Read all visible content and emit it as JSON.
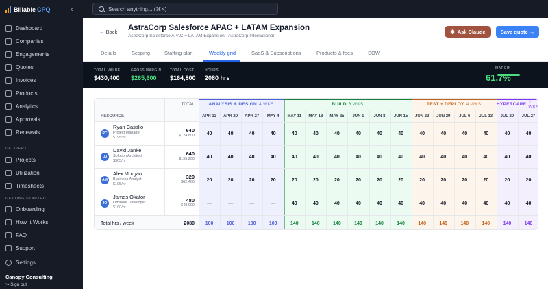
{
  "app": {
    "brand_name": "Billable",
    "brand_suffix": "CPQ"
  },
  "sidebar": {
    "main": [
      {
        "label": "Dashboard",
        "icon": "dashboard-icon"
      },
      {
        "label": "Companies",
        "icon": "building-icon"
      },
      {
        "label": "Engagements",
        "icon": "handshake-icon"
      },
      {
        "label": "Quotes",
        "icon": "document-icon"
      },
      {
        "label": "Invoices",
        "icon": "receipt-icon"
      },
      {
        "label": "Products",
        "icon": "box-icon"
      },
      {
        "label": "Analytics",
        "icon": "chart-icon"
      },
      {
        "label": "Approvals",
        "icon": "check-icon"
      },
      {
        "label": "Renewals",
        "icon": "refresh-icon"
      }
    ],
    "delivery_title": "DELIVERY",
    "delivery": [
      {
        "label": "Projects",
        "icon": "folder-icon"
      },
      {
        "label": "Utilization",
        "icon": "gauge-icon"
      },
      {
        "label": "Timesheets",
        "icon": "clock-icon"
      }
    ],
    "getting_started_title": "GETTING STARTED",
    "getting_started": [
      {
        "label": "Onboarding",
        "icon": "rocket-icon"
      },
      {
        "label": "How It Works",
        "icon": "book-icon"
      },
      {
        "label": "FAQ",
        "icon": "question-icon"
      },
      {
        "label": "Support",
        "icon": "help-icon"
      }
    ],
    "settings_label": "Settings",
    "org_name": "Canopy Consulting",
    "signout_label": "Sign out"
  },
  "search": {
    "placeholder": "Search anything... (⌘K)"
  },
  "header": {
    "back_label": "Back",
    "title": "AstraCorp Salesforce APAC + LATAM Expansion",
    "subtitle": "AstraCorp Salesforce APAC + LATAM Expansion · AstraCorp International",
    "ask_claude_label": "Ask Claude",
    "save_quote_label": "Save quote →"
  },
  "tabs": [
    "Details",
    "Scoping",
    "Staffing plan",
    "Weekly grid",
    "SaaS & Subscriptions",
    "Products & fees",
    "SOW"
  ],
  "active_tab": "Weekly grid",
  "summary": {
    "total_value_label": "TOTAL VALUE",
    "total_value": "$430,400",
    "gross_margin_label": "GROSS MARGIN",
    "gross_margin": "$265,600",
    "total_cost_label": "TOTAL COST",
    "total_cost": "$164,800",
    "hours_label": "HOURS",
    "hours": "2080 hrs",
    "margin_label": "MARGIN",
    "margin": "61.7%"
  },
  "grid": {
    "total_header": "TOTAL",
    "resource_header": "RESOURCE",
    "phases": [
      {
        "name": "ANALYSIS & DESIGN",
        "wks": "4 WKS",
        "color": "#4f5fd6",
        "bg": "#eef0fd",
        "weeks": [
          "APR 13",
          "APR 20",
          "APR 27",
          "MAY 4"
        ]
      },
      {
        "name": "BUILD",
        "wks": "6 WKS",
        "color": "#17803d",
        "bg": "#ecfbf1",
        "weeks": [
          "MAY 11",
          "MAY 18",
          "MAY 25",
          "JUN 1",
          "JUN 8",
          "JUN 15"
        ]
      },
      {
        "name": "TEST + DEPLOY",
        "wks": "4 WKS",
        "color": "#c2611c",
        "bg": "#fdf5ec",
        "weeks": [
          "JUN 22",
          "JUN 29",
          "JUL 6",
          "JUL 13"
        ]
      },
      {
        "name": "HYPERCARE",
        "wks": "2 WKS",
        "color": "#7c3aed",
        "bg": "#f4effd",
        "weeks": [
          "JUL 20",
          "JUL 27"
        ]
      }
    ],
    "resources": [
      {
        "initials": "RC",
        "name": "Ryan Castillo",
        "role": "Project Manager",
        "rate": "$195/hr",
        "total_hrs": "640",
        "total_cost": "$124,800",
        "hours": [
          "40",
          "40",
          "40",
          "40",
          "40",
          "40",
          "40",
          "40",
          "40",
          "40",
          "40",
          "40",
          "40",
          "40",
          "40",
          "40"
        ]
      },
      {
        "initials": "DJ",
        "name": "David Janke",
        "role": "Solution Architect",
        "rate": "$305/hr",
        "total_hrs": "640",
        "total_cost": "$195,200",
        "hours": [
          "40",
          "40",
          "40",
          "40",
          "40",
          "40",
          "40",
          "40",
          "40",
          "40",
          "40",
          "40",
          "40",
          "40",
          "40",
          "40"
        ]
      },
      {
        "initials": "AM",
        "name": "Alex Morgan",
        "role": "Business Analyst",
        "rate": "$195/hr",
        "total_hrs": "320",
        "total_cost": "$62,400",
        "hours": [
          "20",
          "20",
          "20",
          "20",
          "20",
          "20",
          "20",
          "20",
          "20",
          "20",
          "20",
          "20",
          "20",
          "20",
          "20",
          "20"
        ]
      },
      {
        "initials": "JO",
        "name": "James Okafor",
        "role": "Offshore Developer",
        "rate": "$100/hr",
        "total_hrs": "480",
        "total_cost": "$48,000",
        "hours": [
          "—",
          "—",
          "—",
          "—",
          "40",
          "40",
          "40",
          "40",
          "40",
          "40",
          "40",
          "40",
          "40",
          "40",
          "40",
          "40"
        ]
      }
    ],
    "footer_label": "Total hrs / week",
    "footer_total": "2080",
    "footer_weeks": [
      "100",
      "100",
      "100",
      "100",
      "140",
      "140",
      "140",
      "140",
      "140",
      "140",
      "140",
      "140",
      "140",
      "140",
      "140",
      "140"
    ]
  }
}
